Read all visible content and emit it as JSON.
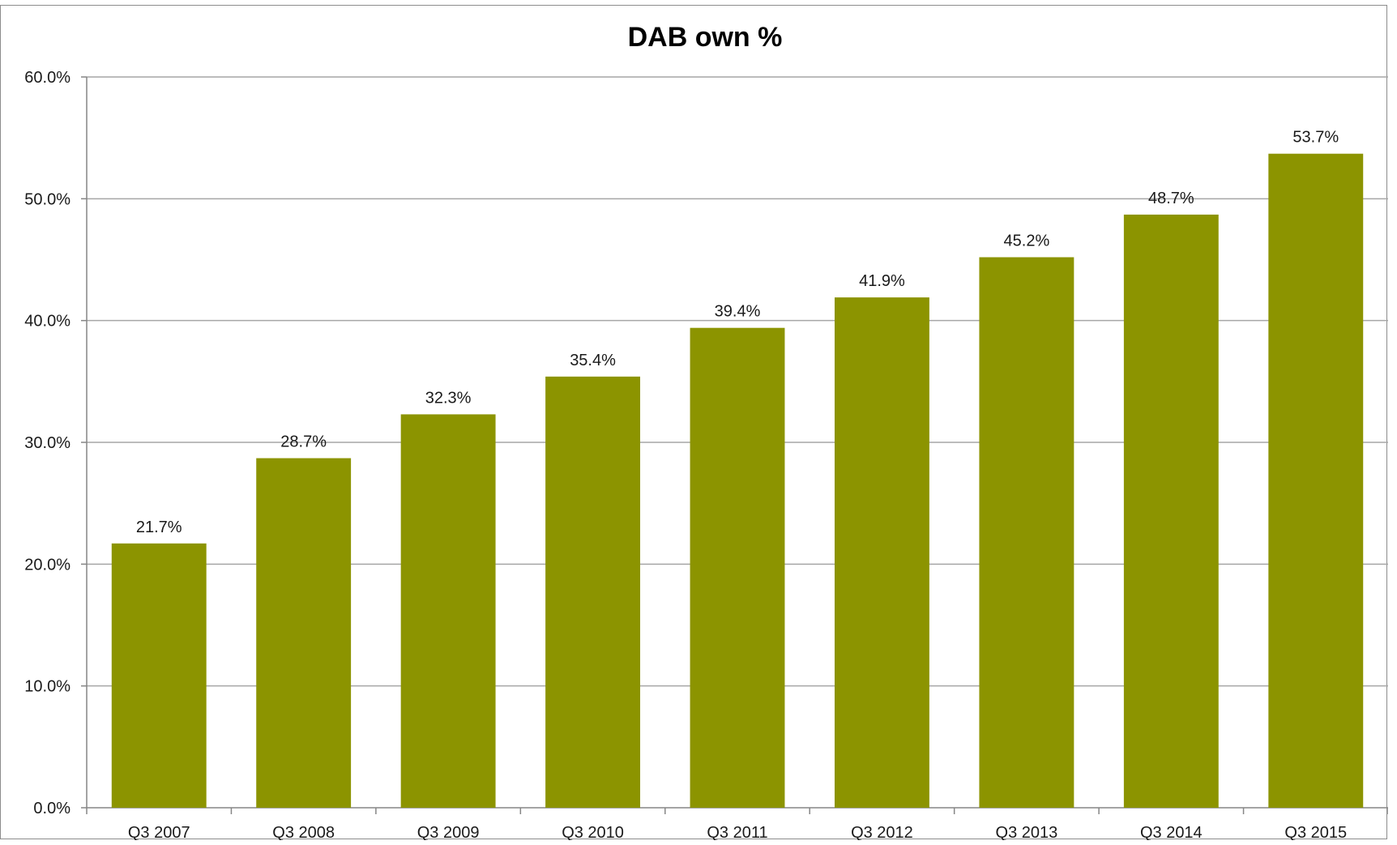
{
  "chart_data": {
    "type": "bar",
    "title": "DAB own %",
    "xlabel": "",
    "ylabel": "",
    "categories": [
      "Q3 2007",
      "Q3 2008",
      "Q3 2009",
      "Q3 2010",
      "Q3 2011",
      "Q3 2012",
      "Q3 2013",
      "Q3 2014",
      "Q3 2015"
    ],
    "values": [
      21.7,
      28.7,
      32.3,
      35.4,
      39.4,
      41.9,
      45.2,
      48.7,
      53.7
    ],
    "data_labels": [
      "21.7%",
      "28.7%",
      "32.3%",
      "35.4%",
      "39.4%",
      "41.9%",
      "45.2%",
      "48.7%",
      "53.7%"
    ],
    "ylim": [
      0,
      60
    ],
    "yticks": [
      0,
      10,
      20,
      30,
      40,
      50,
      60
    ],
    "ytick_labels": [
      "0.0%",
      "10.0%",
      "20.0%",
      "30.0%",
      "40.0%",
      "50.0%",
      "60.0%"
    ],
    "grid": true,
    "legend": "none",
    "bar_color": "#8c9400",
    "grid_color": "#a6a6a6"
  }
}
